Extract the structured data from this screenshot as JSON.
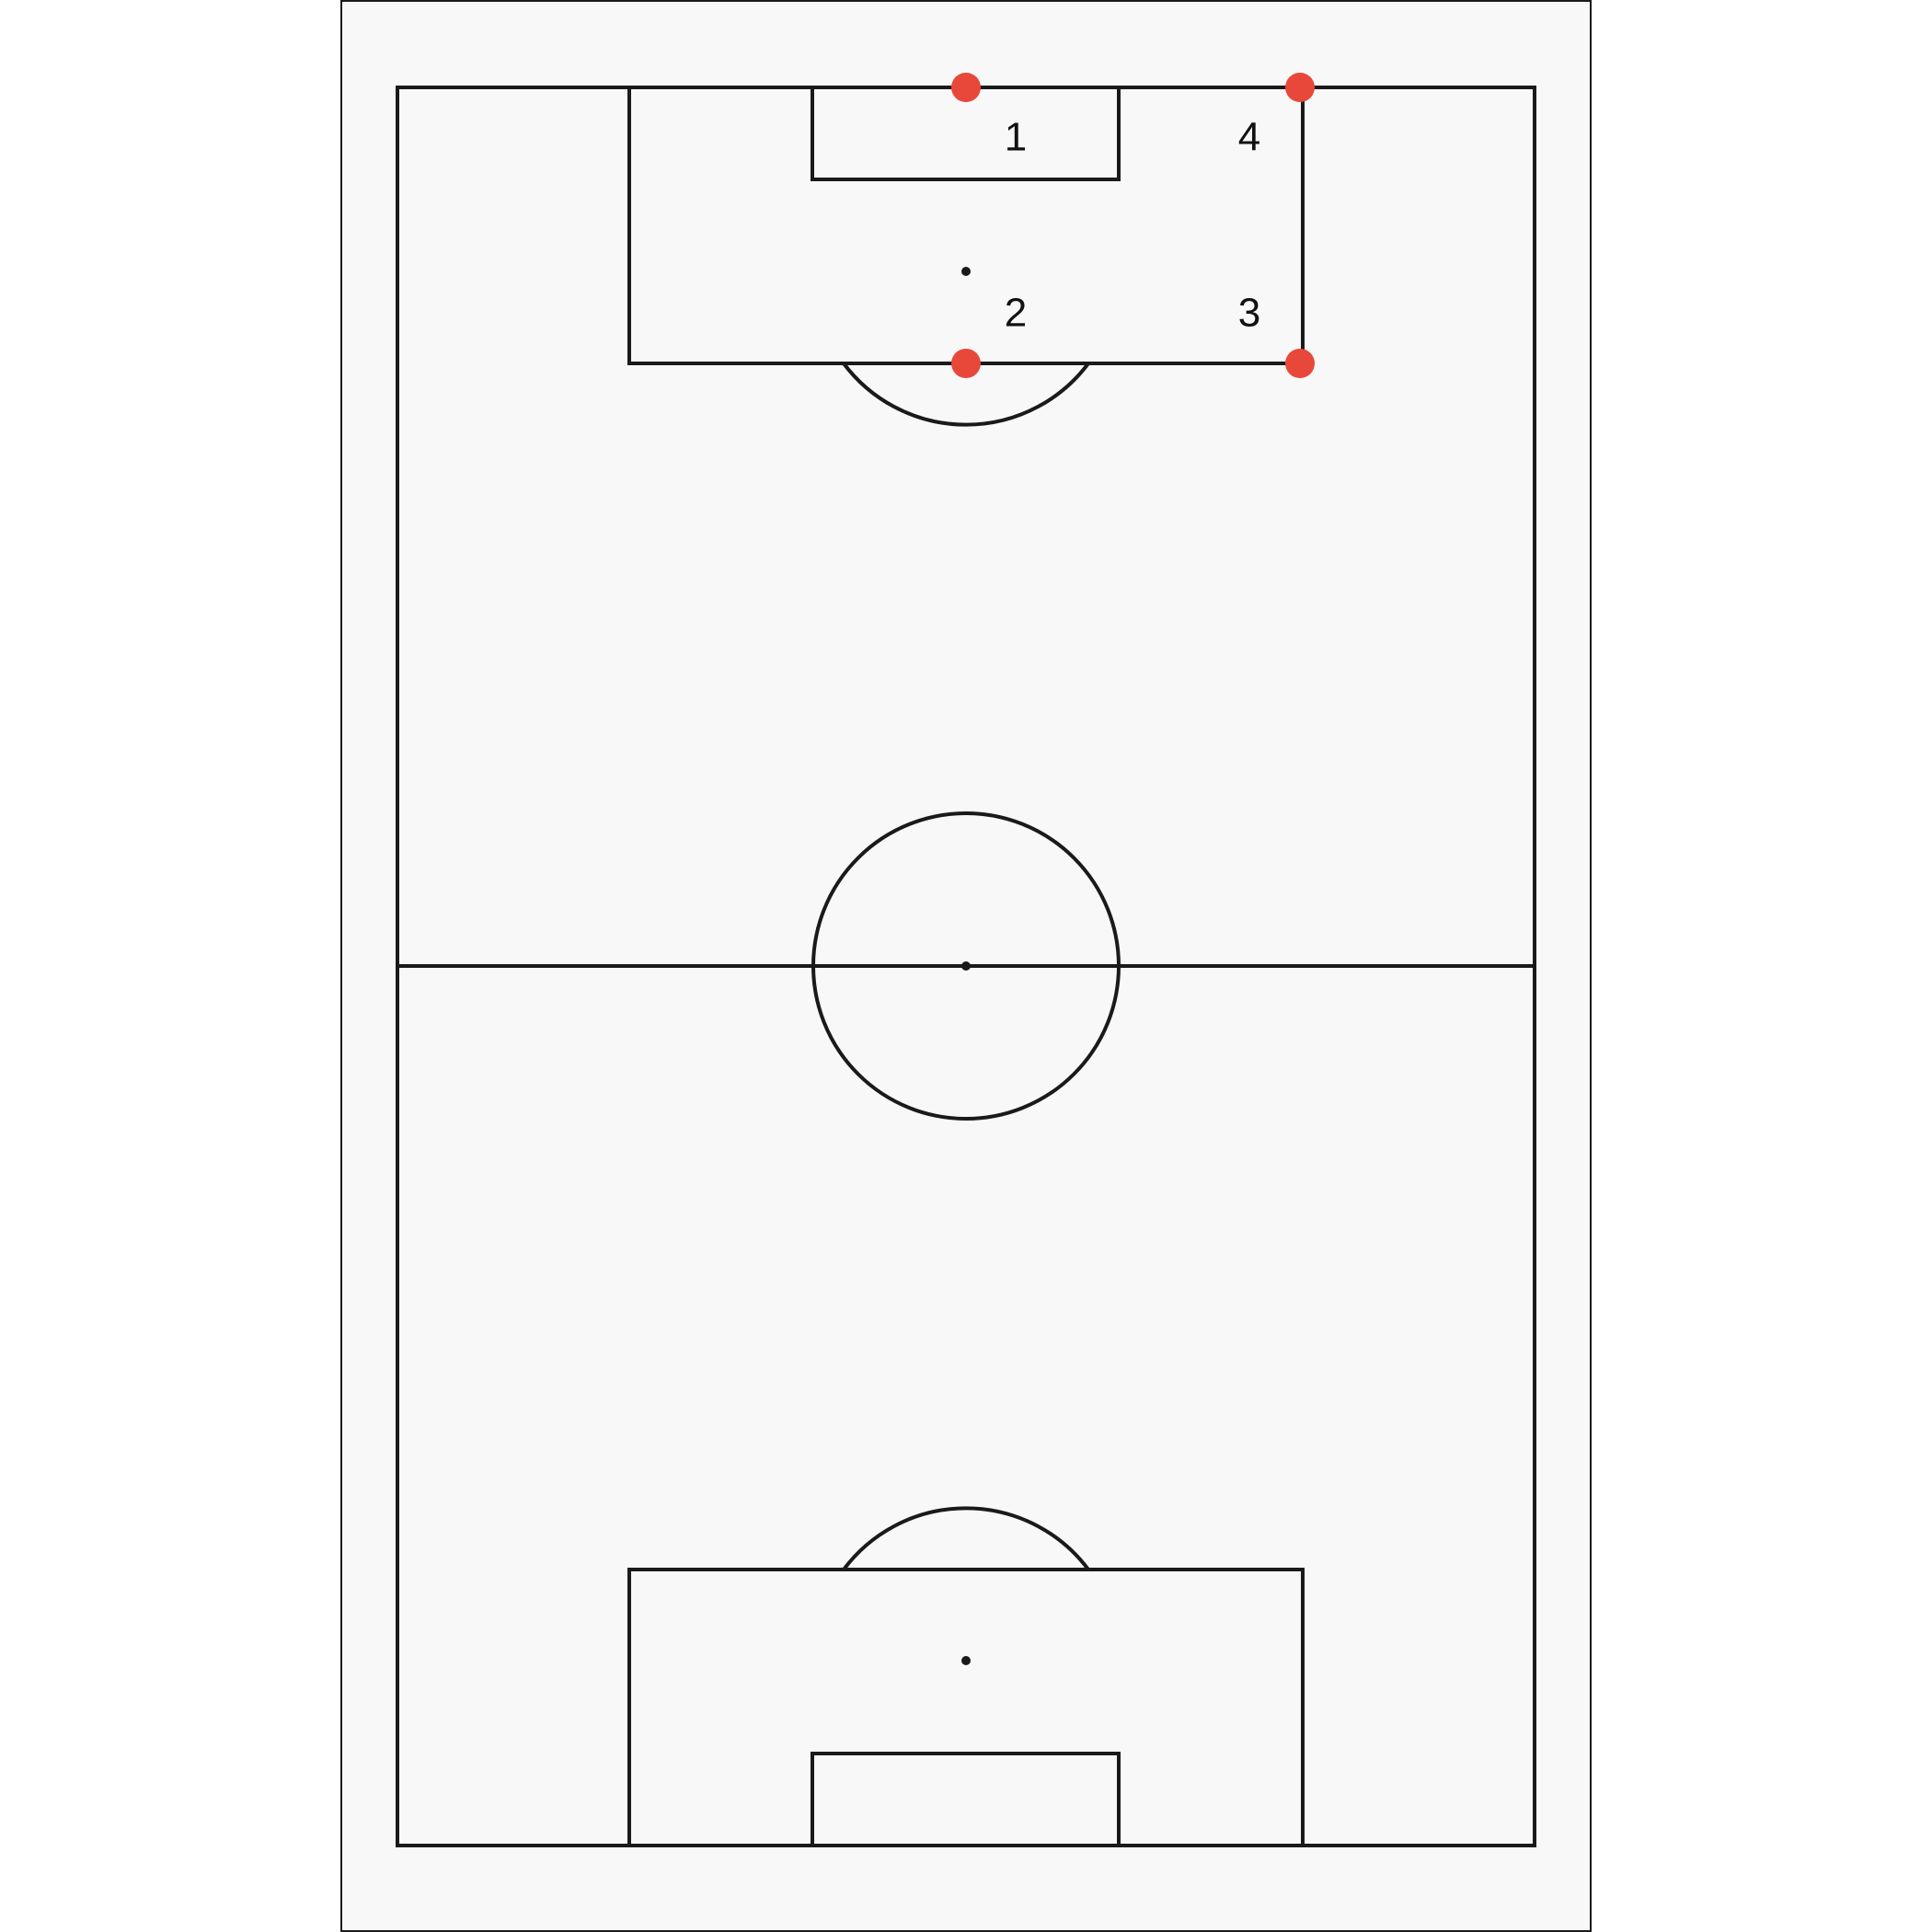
{
  "diagram": {
    "markers": [
      {
        "label": "1",
        "color": "#e8483a"
      },
      {
        "label": "2",
        "color": "#e8483a"
      },
      {
        "label": "3",
        "color": "#e8483a"
      },
      {
        "label": "4",
        "color": "#e8483a"
      }
    ],
    "colors": {
      "background": "#f8f8f8",
      "lines": "#1a1a1a",
      "marker": "#e8483a"
    }
  }
}
